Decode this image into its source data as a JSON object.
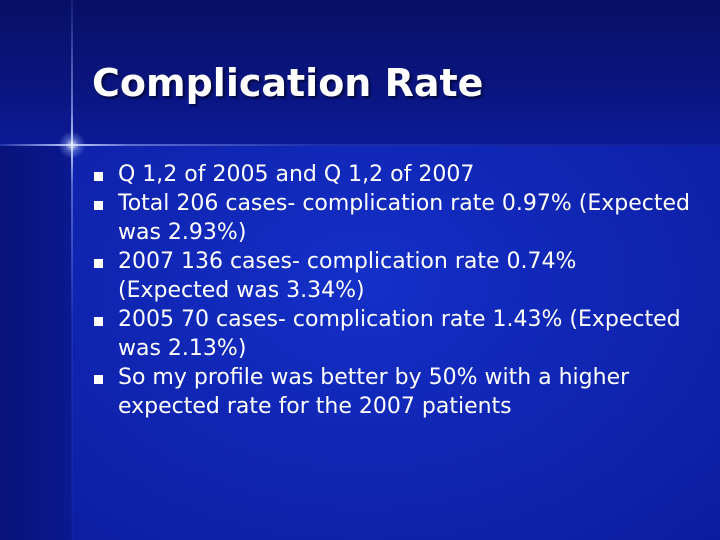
{
  "slide": {
    "title": "Complication Rate",
    "bullets": [
      {
        "text": "Q 1,2 of 2005 and Q 1,2 of 2007"
      },
      {
        "text": "Total 206 cases- complication rate 0.97% (Expected was 2.93%)"
      },
      {
        "text": "2007 136 cases- complication rate 0.74% (Expected was 3.34%)"
      },
      {
        "text": "2005 70 cases- complication rate 1.43% (Expected was 2.13%)"
      },
      {
        "text": "So my profile was better by 50% with a higher expected rate for the 2007 patients"
      }
    ]
  },
  "colors": {
    "background": "#0c1a9e",
    "header_band": "#0a1580",
    "text": "#ffffff"
  }
}
